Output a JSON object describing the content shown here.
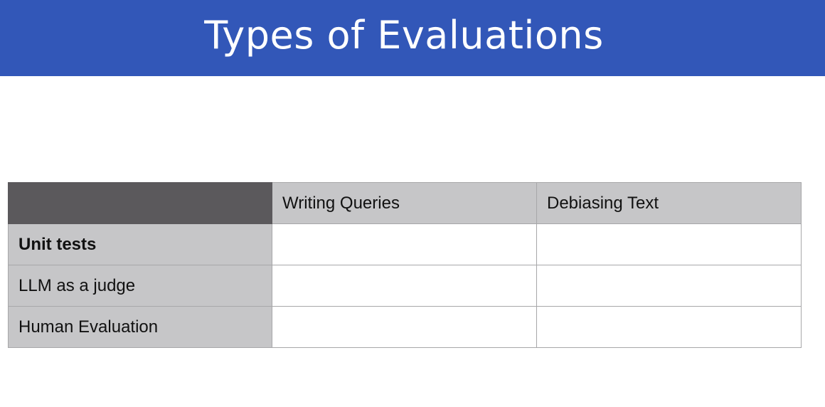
{
  "slide": {
    "title": "Types of Evaluations"
  },
  "table": {
    "columns": [
      "Writing Queries",
      "Debiasing Text"
    ],
    "rows": [
      {
        "label": "Unit tests",
        "cells": [
          "",
          ""
        ]
      },
      {
        "label": "LLM as a judge",
        "cells": [
          "",
          ""
        ]
      },
      {
        "label": "Human Evaluation",
        "cells": [
          "",
          ""
        ]
      }
    ]
  },
  "colors": {
    "title_bar": "#3257b8",
    "corner_cell": "#5b595c",
    "header_cell": "#c6c6c8"
  }
}
